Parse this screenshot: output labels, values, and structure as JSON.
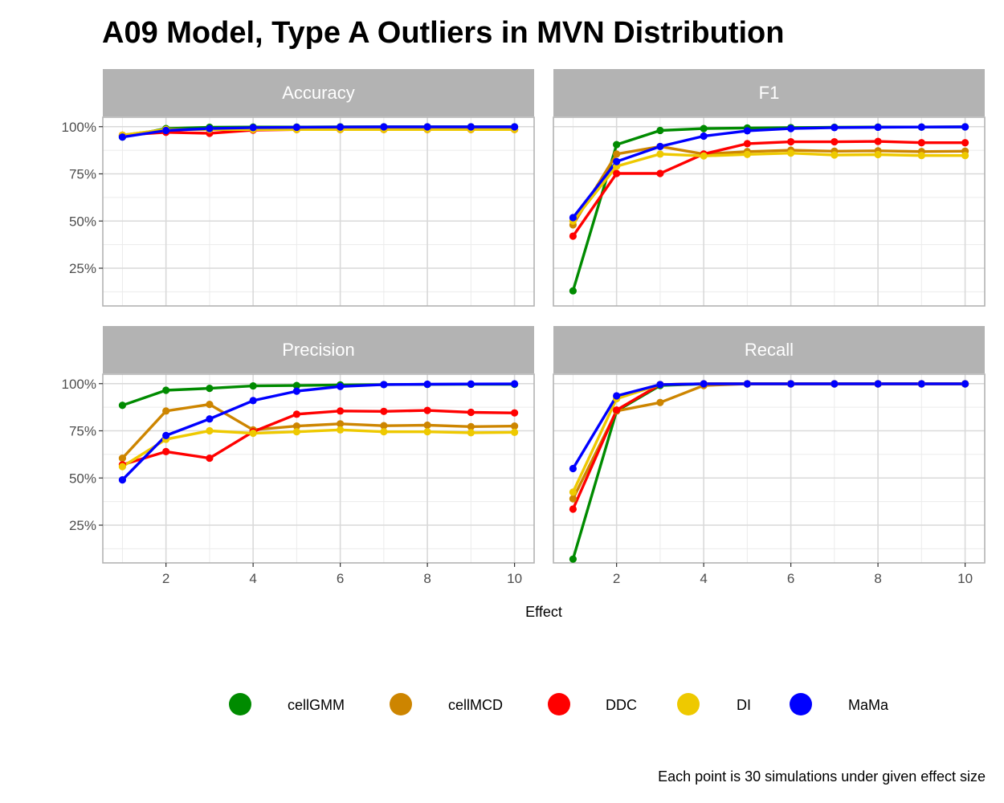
{
  "chart_data": {
    "type": "line",
    "title": "A09 Model, Type A Outliers in MVN Distribution",
    "xlabel": "Effect",
    "ylabel": "",
    "caption": "Each point is 30 simulations under given effect size",
    "x": [
      1,
      2,
      3,
      4,
      5,
      6,
      7,
      8,
      9,
      10
    ],
    "xlim": [
      0.55,
      10.45
    ],
    "ylim": [
      0.05,
      1.05
    ],
    "x_ticks": [
      2,
      4,
      6,
      8,
      10
    ],
    "x_tick_labels": [
      "2",
      "4",
      "6",
      "8",
      "10"
    ],
    "y_ticks": [
      0.25,
      0.5,
      0.75,
      1.0
    ],
    "y_tick_labels": [
      "25%",
      "50%",
      "75%",
      "100%"
    ],
    "grid": true,
    "legend_position": "bottom",
    "legend": [
      {
        "name": "cellGMM",
        "color": "#008B00"
      },
      {
        "name": "cellMCD",
        "color": "#CD8500"
      },
      {
        "name": "DDC",
        "color": "#FF0000"
      },
      {
        "name": "DI",
        "color": "#EEC900"
      },
      {
        "name": "MaMa",
        "color": "#0000FF"
      }
    ],
    "panels": [
      {
        "name": "Accuracy",
        "series": [
          {
            "name": "cellGMM",
            "values": [
              0.945,
              0.99,
              0.997,
              0.998,
              0.998,
              0.999,
              0.999,
              0.999,
              0.999,
              0.999
            ]
          },
          {
            "name": "cellMCD",
            "values": [
              0.955,
              0.985,
              0.985,
              0.985,
              0.985,
              0.985,
              0.985,
              0.985,
              0.985,
              0.985
            ]
          },
          {
            "name": "DDC",
            "values": [
              0.955,
              0.97,
              0.965,
              0.982,
              0.985,
              0.985,
              0.985,
              0.985,
              0.985,
              0.985
            ]
          },
          {
            "name": "DI",
            "values": [
              0.955,
              0.985,
              0.985,
              0.985,
              0.985,
              0.985,
              0.985,
              0.985,
              0.985,
              0.985
            ]
          },
          {
            "name": "MaMa",
            "values": [
              0.945,
              0.98,
              0.99,
              0.995,
              0.997,
              0.998,
              0.999,
              0.999,
              0.999,
              0.999
            ]
          }
        ]
      },
      {
        "name": "F1",
        "series": [
          {
            "name": "cellGMM",
            "values": [
              0.13,
              0.905,
              0.98,
              0.99,
              0.993,
              0.995,
              0.997,
              0.998,
              0.998,
              0.999
            ]
          },
          {
            "name": "cellMCD",
            "values": [
              0.48,
              0.855,
              0.895,
              0.855,
              0.868,
              0.875,
              0.87,
              0.872,
              0.868,
              0.87
            ]
          },
          {
            "name": "DDC",
            "values": [
              0.42,
              0.752,
              0.752,
              0.855,
              0.91,
              0.92,
              0.92,
              0.922,
              0.915,
              0.915
            ]
          },
          {
            "name": "DI",
            "values": [
              0.5,
              0.79,
              0.855,
              0.845,
              0.853,
              0.86,
              0.85,
              0.852,
              0.847,
              0.847
            ]
          },
          {
            "name": "MaMa",
            "values": [
              0.518,
              0.815,
              0.895,
              0.95,
              0.978,
              0.99,
              0.995,
              0.997,
              0.998,
              0.999
            ]
          }
        ]
      },
      {
        "name": "Precision",
        "series": [
          {
            "name": "cellGMM",
            "values": [
              0.885,
              0.965,
              0.975,
              0.988,
              0.99,
              0.993,
              0.995,
              0.996,
              0.997,
              0.997
            ]
          },
          {
            "name": "cellMCD",
            "values": [
              0.605,
              0.855,
              0.89,
              0.755,
              0.775,
              0.787,
              0.777,
              0.78,
              0.772,
              0.775
            ]
          },
          {
            "name": "DDC",
            "values": [
              0.57,
              0.64,
              0.605,
              0.745,
              0.838,
              0.855,
              0.853,
              0.858,
              0.848,
              0.845
            ]
          },
          {
            "name": "DI",
            "values": [
              0.56,
              0.705,
              0.75,
              0.737,
              0.745,
              0.755,
              0.745,
              0.745,
              0.74,
              0.742
            ]
          },
          {
            "name": "MaMa",
            "values": [
              0.49,
              0.725,
              0.813,
              0.91,
              0.96,
              0.985,
              0.995,
              0.997,
              0.998,
              0.999
            ]
          }
        ]
      },
      {
        "name": "Recall",
        "series": [
          {
            "name": "cellGMM",
            "values": [
              0.07,
              0.855,
              0.99,
              0.998,
              0.999,
              0.999,
              0.999,
              0.999,
              0.999,
              0.999
            ]
          },
          {
            "name": "cellMCD",
            "values": [
              0.39,
              0.855,
              0.9,
              0.99,
              0.999,
              0.999,
              0.999,
              0.999,
              0.999,
              0.999
            ]
          },
          {
            "name": "DDC",
            "values": [
              0.335,
              0.86,
              0.995,
              0.999,
              0.999,
              0.999,
              0.999,
              0.999,
              0.999,
              0.999
            ]
          },
          {
            "name": "DI",
            "values": [
              0.425,
              0.92,
              0.995,
              0.999,
              0.999,
              0.999,
              0.999,
              0.999,
              0.999,
              0.999
            ]
          },
          {
            "name": "MaMa",
            "values": [
              0.55,
              0.935,
              0.995,
              0.999,
              0.999,
              0.999,
              0.999,
              0.999,
              0.999,
              0.999
            ]
          }
        ]
      }
    ]
  }
}
